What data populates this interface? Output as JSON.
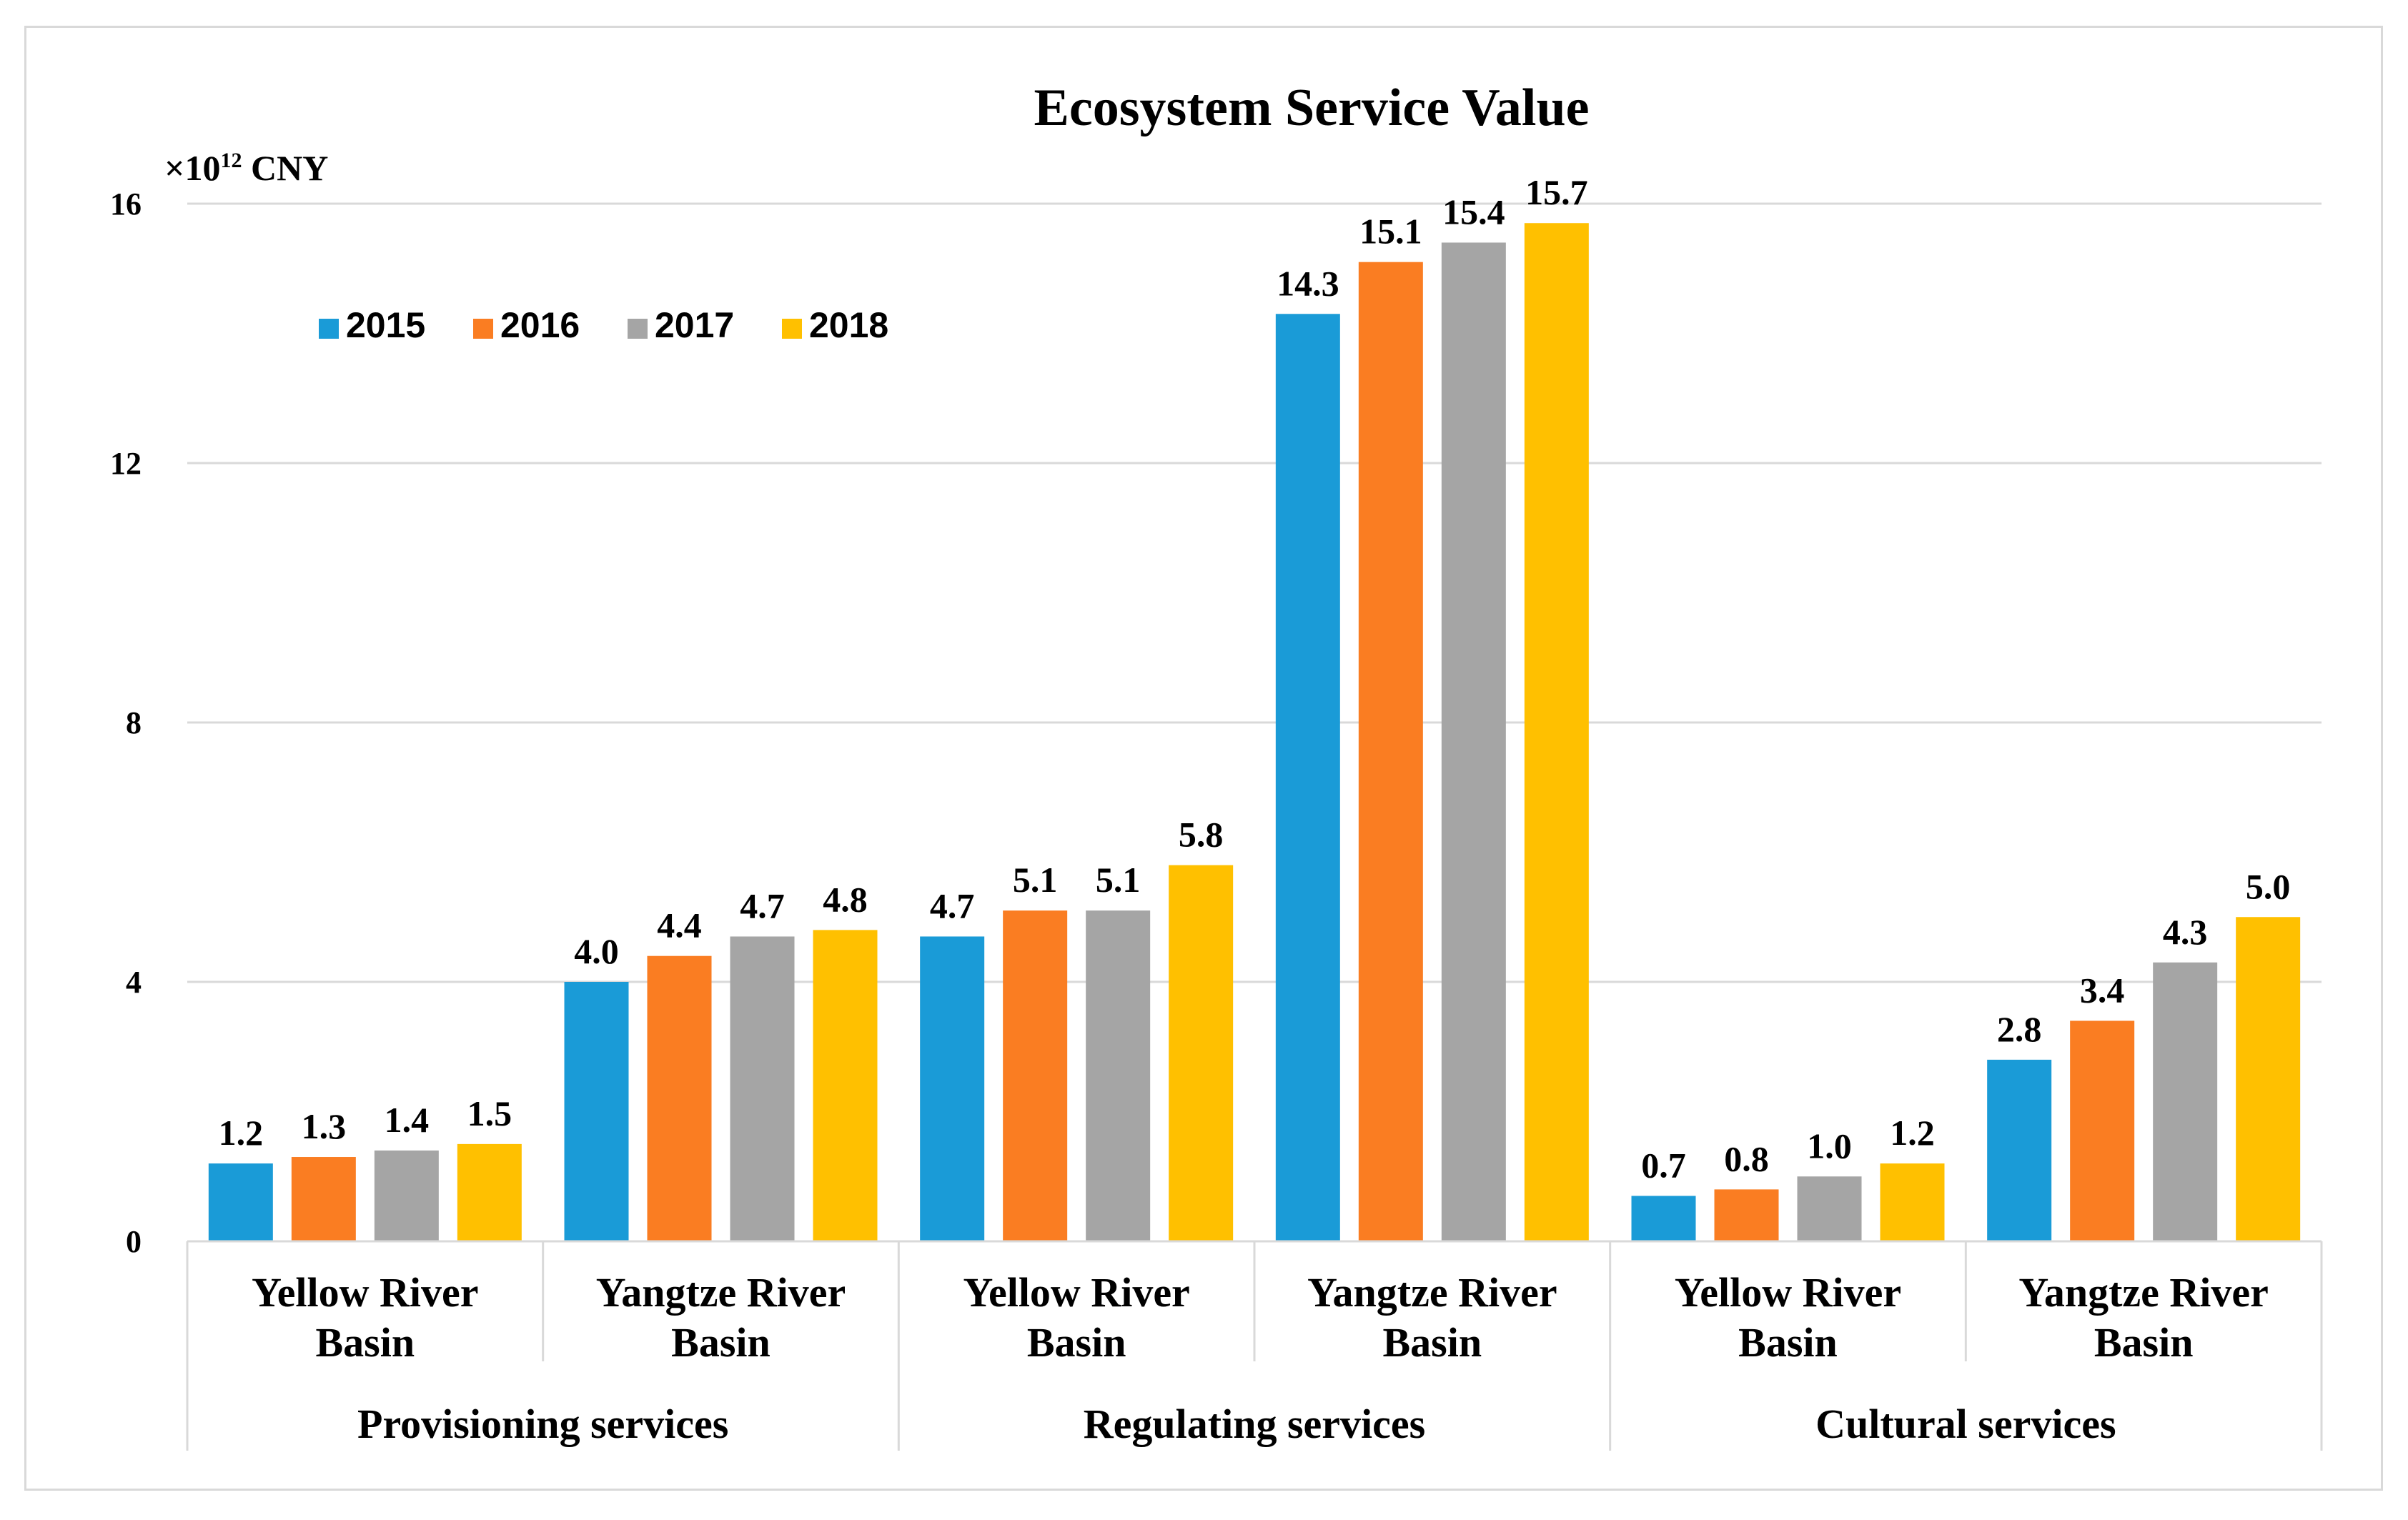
{
  "chart_data": {
    "type": "bar",
    "title": "Ecosystem Service Value",
    "ylabel": {
      "prefix": "×10",
      "exponent": "12",
      "suffix": " CNY"
    },
    "ylim": [
      0,
      16
    ],
    "yticks": [
      "0",
      "4",
      "8",
      "12",
      "16"
    ],
    "grid": true,
    "legend_position": "top-left",
    "categories": [
      {
        "line1": "Yellow River",
        "line2": "Basin",
        "group": "Provisioning services"
      },
      {
        "line1": "Yangtze River",
        "line2": "Basin",
        "group": "Provisioning services"
      },
      {
        "line1": "Yellow River",
        "line2": "Basin",
        "group": "Regulating services"
      },
      {
        "line1": "Yangtze River",
        "line2": "Basin",
        "group": "Regulating services"
      },
      {
        "line1": "Yellow River",
        "line2": "Basin",
        "group": "Cultural services"
      },
      {
        "line1": "Yangtze River",
        "line2": "Basin",
        "group": "Cultural services"
      }
    ],
    "groups": [
      "Provisioning services",
      "Regulating services",
      "Cultural services"
    ],
    "series": [
      {
        "name": "2015",
        "color": "#1a9bd7",
        "values": [
          1.2,
          4.0,
          4.7,
          14.3,
          0.7,
          2.8
        ],
        "labels": [
          "1.2",
          "4.0",
          "4.7",
          "14.3",
          "0.7",
          "2.8"
        ]
      },
      {
        "name": "2016",
        "color": "#fa7d22",
        "values": [
          1.3,
          4.4,
          5.1,
          15.1,
          0.8,
          3.4
        ],
        "labels": [
          "1.3",
          "4.4",
          "5.1",
          "15.1",
          "0.8",
          "3.4"
        ]
      },
      {
        "name": "2017",
        "color": "#a5a5a5",
        "values": [
          1.4,
          4.7,
          5.1,
          15.4,
          1.0,
          4.3
        ],
        "labels": [
          "1.4",
          "4.7",
          "5.1",
          "15.4",
          "1.0",
          "4.3"
        ]
      },
      {
        "name": "2018",
        "color": "#ffc000",
        "values": [
          1.5,
          4.8,
          5.8,
          15.7,
          1.2,
          5.0
        ],
        "labels": [
          "1.5",
          "4.8",
          "5.8",
          "15.7",
          "1.2",
          "5.0"
        ]
      }
    ]
  }
}
